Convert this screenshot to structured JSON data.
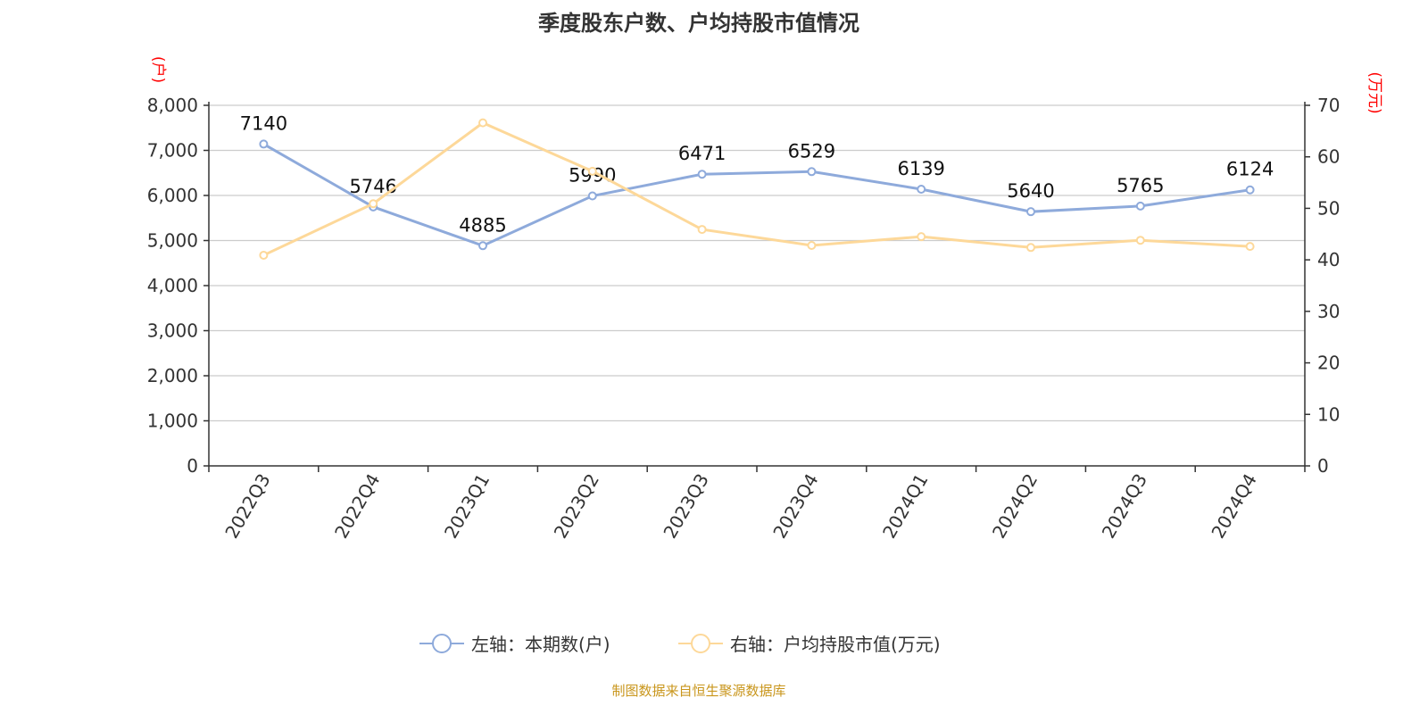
{
  "chart_data": {
    "type": "line",
    "title": "季度股东户数、户均持股市值情况",
    "categories": [
      "2022Q3",
      "2022Q4",
      "2023Q1",
      "2023Q2",
      "2023Q3",
      "2023Q4",
      "2024Q1",
      "2024Q2",
      "2024Q3",
      "2024Q4"
    ],
    "y_left": {
      "label": "(户)",
      "range": [
        0,
        8000
      ],
      "ticks": [
        0,
        1000,
        2000,
        3000,
        4000,
        5000,
        6000,
        7000,
        8000
      ],
      "tick_labels": [
        "0",
        "1,000",
        "2,000",
        "3,000",
        "4,000",
        "5,000",
        "6,000",
        "7,000",
        "8,000"
      ]
    },
    "y_right": {
      "label": "(万元)",
      "range": [
        0,
        70
      ],
      "ticks": [
        0,
        10,
        20,
        30,
        40,
        50,
        60,
        70
      ],
      "tick_labels": [
        "0",
        "10",
        "20",
        "30",
        "40",
        "50",
        "60",
        "70"
      ]
    },
    "grid": true,
    "legend_position": "bottom",
    "series": [
      {
        "name": "左轴：本期数(户)",
        "axis": "left",
        "color": "#8eaadb",
        "values": [
          7140,
          5746,
          4885,
          5990,
          6471,
          6529,
          6139,
          5640,
          5765,
          6124
        ],
        "data_labels": [
          "7140",
          "5746",
          "4885",
          "5990",
          "6471",
          "6529",
          "6139",
          "5640",
          "5765",
          "6124"
        ]
      },
      {
        "name": "右轴：户均持股市值(万元)",
        "axis": "right",
        "color": "#fdd899",
        "values": [
          40.9,
          50.9,
          66.6,
          57.2,
          45.9,
          42.8,
          44.5,
          42.4,
          43.8,
          42.6
        ]
      }
    ]
  },
  "footer": "制图数据来自恒生聚源数据库",
  "colors": {
    "axis_label": "#ff0000",
    "grid": "#cccccc",
    "text": "#333333"
  }
}
